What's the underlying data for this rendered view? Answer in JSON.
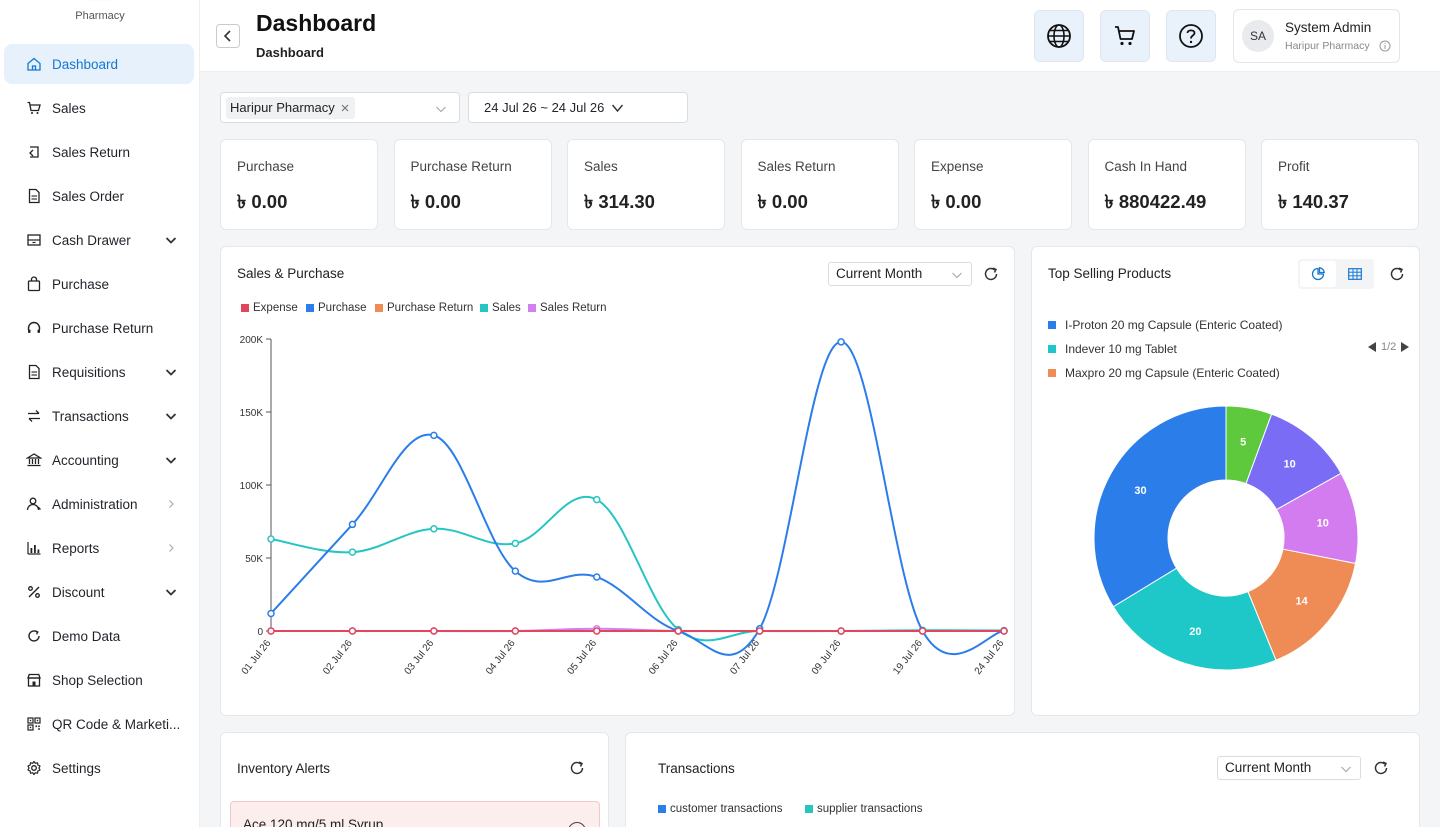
{
  "brand": {
    "name": "Pharmacy"
  },
  "sidebar": {
    "items": [
      {
        "label": "Dashboard",
        "icon": "home-icon"
      },
      {
        "label": "Sales",
        "icon": "cart-icon"
      },
      {
        "label": "Sales Return",
        "icon": "return-icon"
      },
      {
        "label": "Sales Order",
        "icon": "document-icon"
      },
      {
        "label": "Cash Drawer",
        "icon": "drawer-icon"
      },
      {
        "label": "Purchase",
        "icon": "bag-icon"
      },
      {
        "label": "Purchase Return",
        "icon": "headset-icon"
      },
      {
        "label": "Requisitions",
        "icon": "document-icon"
      },
      {
        "label": "Transactions",
        "icon": "swap-icon"
      },
      {
        "label": "Accounting",
        "icon": "bank-icon"
      },
      {
        "label": "Administration",
        "icon": "users-icon"
      },
      {
        "label": "Reports",
        "icon": "bar-chart-icon"
      },
      {
        "label": "Discount",
        "icon": "percent-icon"
      },
      {
        "label": "Demo Data",
        "icon": "reload-icon"
      },
      {
        "label": "Shop Selection",
        "icon": "shop-icon"
      },
      {
        "label": "QR Code & Marketi...",
        "icon": "qr-icon"
      },
      {
        "label": "Settings",
        "icon": "gear-icon"
      }
    ]
  },
  "header": {
    "title": "Dashboard",
    "breadcrumb": "Dashboard",
    "user": {
      "initials": "SA",
      "name": "System Admin",
      "shop": "Haripur Pharmacy"
    }
  },
  "filters": {
    "shop": "Haripur Pharmacy",
    "date_range": "24 Jul 26 ~ 24 Jul 26"
  },
  "stats": [
    {
      "title": "Purchase",
      "value": "৳ 0.00"
    },
    {
      "title": "Purchase Return",
      "value": "৳ 0.00"
    },
    {
      "title": "Sales",
      "value": "৳ 314.30"
    },
    {
      "title": "Sales Return",
      "value": "৳ 0.00"
    },
    {
      "title": "Expense",
      "value": "৳ 0.00"
    },
    {
      "title": "Cash In Hand",
      "value": "৳ 880422.49"
    },
    {
      "title": "Profit",
      "value": "৳ 140.37"
    }
  ],
  "sales_purchase": {
    "title": "Sales & Purchase",
    "period": "Current Month"
  },
  "top_selling": {
    "title": "Top Selling Products",
    "pager": "1/2"
  },
  "inventory": {
    "title": "Inventory Alerts",
    "first_item": "Ace 120 mg/5 ml Syrup"
  },
  "transactions": {
    "title": "Transactions",
    "period": "Current Month",
    "legend": [
      {
        "name": "customer transactions",
        "color": "#2b7de9"
      },
      {
        "name": "supplier transactions",
        "color": "#27c4c4"
      }
    ]
  },
  "chart_data": [
    {
      "type": "line",
      "title": "Sales & Purchase",
      "categories": [
        "01 Jul 26",
        "02 Jul 26",
        "03 Jul 26",
        "04 Jul 26",
        "05 Jul 26",
        "06 Jul 26",
        "07 Jul 26",
        "09 Jul 26",
        "19 Jul 26",
        "24 Jul 26"
      ],
      "y_ticks": [
        "0",
        "50K",
        "100K",
        "150K",
        "200K"
      ],
      "ylim": [
        0,
        200000
      ],
      "legend_position": "top-left",
      "grid": false,
      "series": [
        {
          "name": "Expense",
          "color": "#e0475e",
          "values": [
            0,
            0,
            0,
            0,
            0,
            0,
            0,
            0,
            0,
            0
          ]
        },
        {
          "name": "Purchase",
          "color": "#2b7de9",
          "values": [
            12000,
            73000,
            134000,
            41000,
            37000,
            0,
            1500,
            198000,
            0,
            0
          ]
        },
        {
          "name": "Purchase Return",
          "color": "#ef8b55",
          "values": [
            0,
            0,
            0,
            0,
            0,
            0,
            0,
            0,
            0,
            0
          ]
        },
        {
          "name": "Sales",
          "color": "#27c4c4",
          "values": [
            63000,
            54000,
            70000,
            60000,
            90000,
            1000,
            0,
            0,
            500,
            300
          ]
        },
        {
          "name": "Sales Return",
          "color": "#d27ff0",
          "values": [
            0,
            0,
            0,
            0,
            1500,
            0,
            0,
            0,
            0,
            0
          ]
        }
      ]
    },
    {
      "type": "pie",
      "title": "Top Selling Products",
      "legend": [
        {
          "name": "I-Proton 20 mg Capsule (Enteric Coated)",
          "color": "#2b7de9"
        },
        {
          "name": "Indever 10 mg Tablet",
          "color": "#1fc8c8"
        },
        {
          "name": "Maxpro 20 mg Capsule (Enteric Coated)",
          "color": "#ef8b55"
        }
      ],
      "slices": [
        {
          "value": 5,
          "color": "#5ec93d"
        },
        {
          "value": 10,
          "color": "#7b6cf6"
        },
        {
          "value": 10,
          "color": "#d37cf0"
        },
        {
          "value": 14,
          "color": "#ef8b55"
        },
        {
          "value": 20,
          "color": "#1fc8c8"
        },
        {
          "value": 30,
          "color": "#2b7de9"
        }
      ]
    }
  ]
}
